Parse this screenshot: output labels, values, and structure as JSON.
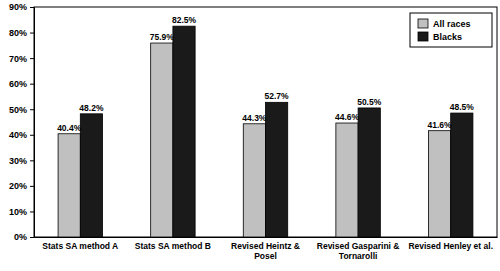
{
  "chart_data": {
    "type": "bar",
    "categories": [
      "Stats SA method A",
      "Stats SA method B",
      "Revised Heintz &\nPosel",
      "Revised Gasparini &\nTornarolli",
      "Revised Henley et al."
    ],
    "series": [
      {
        "name": "All races",
        "color": "#c0c0c0",
        "values": [
          40.4,
          75.9,
          44.3,
          44.6,
          41.6
        ],
        "value_labels": [
          "40.4%",
          "75.9%",
          "44.3%",
          "44.6%",
          "41.6%"
        ]
      },
      {
        "name": "Blacks",
        "color": "#1a1a1a",
        "values": [
          48.2,
          82.5,
          52.7,
          50.5,
          48.5
        ],
        "value_labels": [
          "48.2%",
          "82.5%",
          "52.7%",
          "50.5%",
          "48.5%"
        ]
      }
    ],
    "ylim": [
      0,
      90
    ],
    "yticks": [
      {
        "value": 0,
        "label": "0%"
      },
      {
        "value": 10,
        "label": "10%"
      },
      {
        "value": 20,
        "label": "20%"
      },
      {
        "value": 30,
        "label": "30%"
      },
      {
        "value": 40,
        "label": "40%"
      },
      {
        "value": 50,
        "label": "50%"
      },
      {
        "value": 60,
        "label": "60%"
      },
      {
        "value": 70,
        "label": "70%"
      },
      {
        "value": 80,
        "label": "80%"
      },
      {
        "value": 90,
        "label": "90%"
      }
    ],
    "grid": false,
    "legend": "top-right",
    "data_labels": true
  }
}
